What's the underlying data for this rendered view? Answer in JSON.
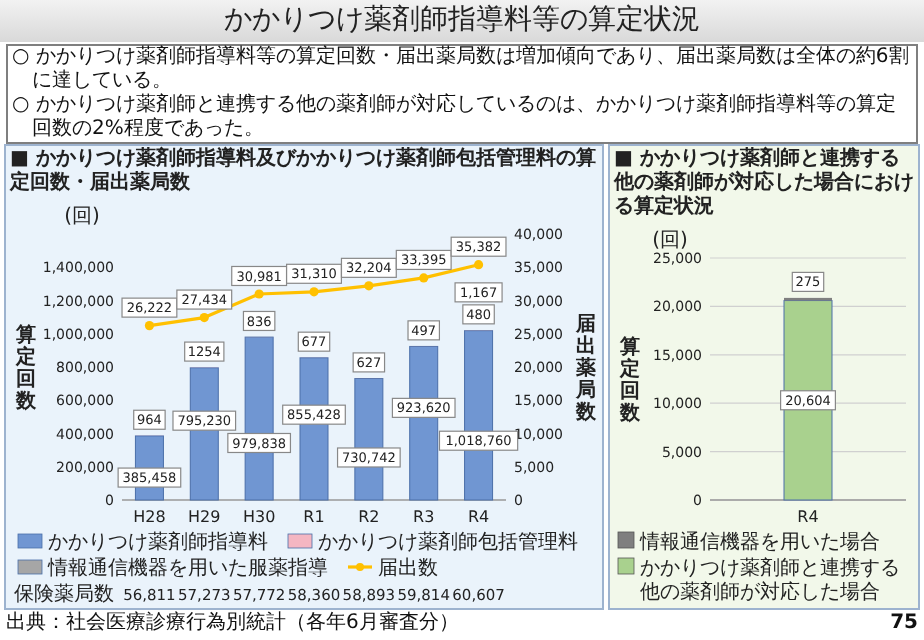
{
  "chart_data": [
    {
      "type": "other",
      "title": "かかりつけ薬剤師指導料等の算定状況",
      "annotations": [
        "○ かかりつけ薬剤師指導料等の算定回数・届出薬局数は増加傾向であり、届出薬局数は全体の約6割に達している。",
        "○ かかりつけ薬剤師と連携する他の薬剤師が対応しているのは、かかりつけ薬剤師指導料等の算定回数の2%程度であった。",
        "出典：社会医療診療行為別統計（各年6月審査分）",
        "75"
      ]
    },
    {
      "type": "bar",
      "stacked": true,
      "title": "■ かかりつけ薬剤師指導料及びかかりつけ薬剤師包括管理料の算定回数・届出薬局数",
      "ylabel": "算定回数",
      "y2label": "届出薬局数",
      "categories": [
        "H28",
        "H29",
        "H30",
        "R1",
        "R2",
        "R3",
        "R4"
      ],
      "series": [
        {
          "name": "かかりつけ薬剤師指導料",
          "color": "#7096d2",
          "values": [
            385458,
            795230,
            979838,
            855428,
            730742,
            923620,
            1018760
          ],
          "value_labels": [
            "385,458",
            "795,230",
            "979,838",
            "855,428",
            "730,742",
            "923,620",
            "1,018,760"
          ]
        },
        {
          "name": "かかりつけ薬剤師包括管理料",
          "color": "#f4b6c2",
          "values": [
            964,
            1254,
            836,
            677,
            627,
            497,
            1167
          ],
          "value_labels": [
            "964",
            "1254",
            "836",
            "677",
            "627",
            "497",
            "1,167"
          ]
        },
        {
          "name": "情報通信機器を用いた服薬指導",
          "color": "#a6a6a6",
          "values": [
            null,
            null,
            null,
            null,
            null,
            null,
            480
          ],
          "value_labels": [
            null,
            null,
            null,
            null,
            null,
            null,
            "480"
          ]
        },
        {
          "name": "届出数",
          "type": "line",
          "axis": "y2",
          "marker": "circle",
          "color": "#ffc000",
          "values": [
            26222,
            27434,
            30981,
            31310,
            32204,
            33395,
            35382
          ],
          "value_labels": [
            "26,222",
            "27,434",
            "30,981",
            "31,310",
            "32,204",
            "33,395",
            "35,382"
          ]
        }
      ],
      "ylim": [
        0,
        1600000
      ],
      "yticks": [
        0,
        {
          "value": 200000,
          "label": "200,000"
        },
        {
          "value": 400000,
          "label": "400,000"
        },
        {
          "value": 600000,
          "label": "600,000"
        },
        {
          "value": 800000,
          "label": "800,000"
        },
        {
          "value": 1000000,
          "label": "1,000,000"
        },
        {
          "value": 1200000,
          "label": "1,200,000"
        },
        {
          "value": 1400000,
          "label": "1,400,000"
        }
      ],
      "y2lim": [
        0,
        40000
      ],
      "y2ticks": [
        0,
        {
          "value": 5000,
          "label": "5,000"
        },
        {
          "value": 10000,
          "label": "10,000"
        },
        {
          "value": 15000,
          "label": "15,000"
        },
        {
          "value": 20000,
          "label": "20,000"
        },
        {
          "value": 25000,
          "label": "25,000"
        },
        {
          "value": 30000,
          "label": "30,000"
        },
        {
          "value": 35000,
          "label": "35,000"
        },
        {
          "value": 40000,
          "label": "40,000"
        }
      ],
      "grid": false,
      "legend": "bottom",
      "annotations": [
        "(回)",
        "保険薬局数",
        "56,811",
        "57,273",
        "57,772",
        "58,360",
        "58,893",
        "59,814",
        "60,607"
      ]
    },
    {
      "type": "bar",
      "stacked": true,
      "title": "■ かかりつけ薬剤師と連携する他の薬剤師が対応した場合における算定状況",
      "ylabel": "算定回数",
      "categories": [
        "R4"
      ],
      "series": [
        {
          "name": "かかりつけ薬剤師と連携する他の薬剤師が対応した場合",
          "color": "#a9d18e",
          "values": [
            20604
          ],
          "value_labels": [
            "20,604"
          ]
        },
        {
          "name": "情報通信機器を用いた場合",
          "color": "#7f7f7f",
          "values": [
            275
          ],
          "value_labels": [
            "275"
          ]
        }
      ],
      "ylim": [
        0,
        25000
      ],
      "yticks": [
        0,
        {
          "value": 5000,
          "label": "5,000"
        },
        {
          "value": 10000,
          "label": "10,000"
        },
        {
          "value": 15000,
          "label": "15,000"
        },
        {
          "value": 20000,
          "label": "20,000"
        },
        {
          "value": 25000,
          "label": "25,000"
        }
      ],
      "grid": "y",
      "legend": "bottom",
      "annotations": [
        "(回)"
      ]
    }
  ]
}
